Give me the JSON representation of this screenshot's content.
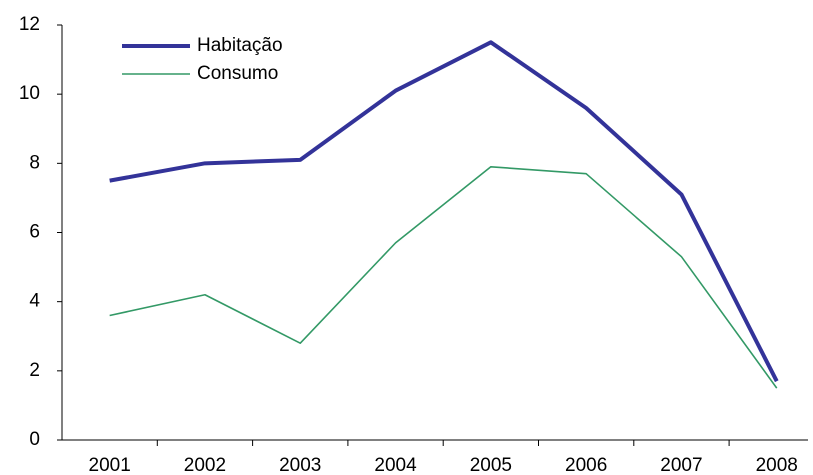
{
  "chart_data": {
    "type": "line",
    "categories": [
      "2001",
      "2002",
      "2003",
      "2004",
      "2005",
      "2006",
      "2007",
      "2008"
    ],
    "series": [
      {
        "name": "Habitação",
        "color": "#333399",
        "values": [
          7.5,
          8.0,
          8.1,
          10.1,
          11.5,
          9.6,
          7.1,
          1.7
        ]
      },
      {
        "name": "Consumo",
        "color": "#339966",
        "values": [
          3.6,
          4.2,
          2.8,
          5.7,
          7.9,
          7.7,
          5.3,
          1.5
        ]
      }
    ],
    "ylim": [
      0,
      12
    ],
    "yticks": [
      0,
      2,
      4,
      6,
      8,
      10,
      12
    ],
    "grid": false,
    "legend": "top-left"
  }
}
